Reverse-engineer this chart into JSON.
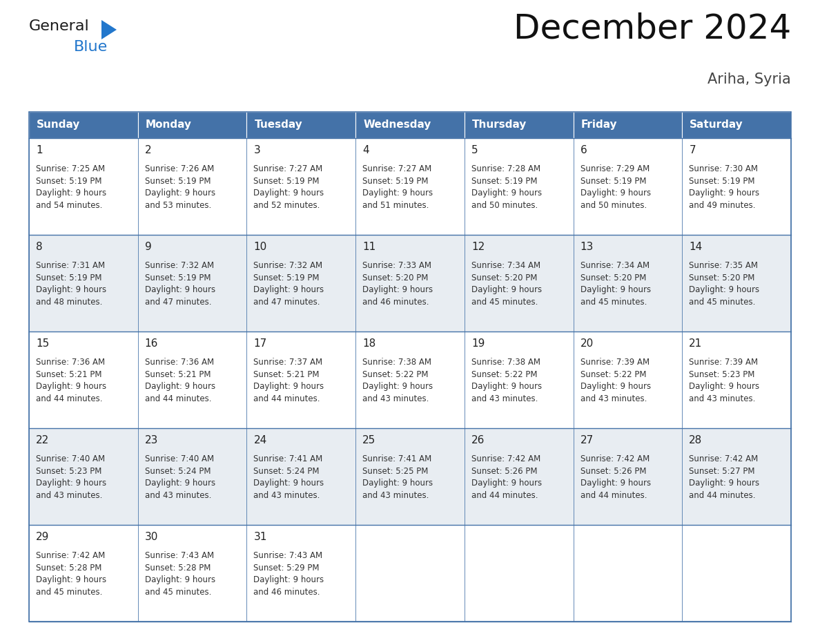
{
  "title": "December 2024",
  "subtitle": "Ariha, Syria",
  "header_color": "#4472a8",
  "header_text_color": "#ffffff",
  "cell_bg_white": "#ffffff",
  "cell_bg_gray": "#e8edf2",
  "border_color": "#4472a8",
  "text_color": "#333333",
  "day_num_color": "#222222",
  "day_names": [
    "Sunday",
    "Monday",
    "Tuesday",
    "Wednesday",
    "Thursday",
    "Friday",
    "Saturday"
  ],
  "days": [
    {
      "day": 1,
      "col": 0,
      "row": 0,
      "sunrise": "7:25 AM",
      "sunset": "5:19 PM",
      "daylight_l1": "9 hours",
      "daylight_l2": "and 54 minutes."
    },
    {
      "day": 2,
      "col": 1,
      "row": 0,
      "sunrise": "7:26 AM",
      "sunset": "5:19 PM",
      "daylight_l1": "9 hours",
      "daylight_l2": "and 53 minutes."
    },
    {
      "day": 3,
      "col": 2,
      "row": 0,
      "sunrise": "7:27 AM",
      "sunset": "5:19 PM",
      "daylight_l1": "9 hours",
      "daylight_l2": "and 52 minutes."
    },
    {
      "day": 4,
      "col": 3,
      "row": 0,
      "sunrise": "7:27 AM",
      "sunset": "5:19 PM",
      "daylight_l1": "9 hours",
      "daylight_l2": "and 51 minutes."
    },
    {
      "day": 5,
      "col": 4,
      "row": 0,
      "sunrise": "7:28 AM",
      "sunset": "5:19 PM",
      "daylight_l1": "9 hours",
      "daylight_l2": "and 50 minutes."
    },
    {
      "day": 6,
      "col": 5,
      "row": 0,
      "sunrise": "7:29 AM",
      "sunset": "5:19 PM",
      "daylight_l1": "9 hours",
      "daylight_l2": "and 50 minutes."
    },
    {
      "day": 7,
      "col": 6,
      "row": 0,
      "sunrise": "7:30 AM",
      "sunset": "5:19 PM",
      "daylight_l1": "9 hours",
      "daylight_l2": "and 49 minutes."
    },
    {
      "day": 8,
      "col": 0,
      "row": 1,
      "sunrise": "7:31 AM",
      "sunset": "5:19 PM",
      "daylight_l1": "9 hours",
      "daylight_l2": "and 48 minutes."
    },
    {
      "day": 9,
      "col": 1,
      "row": 1,
      "sunrise": "7:32 AM",
      "sunset": "5:19 PM",
      "daylight_l1": "9 hours",
      "daylight_l2": "and 47 minutes."
    },
    {
      "day": 10,
      "col": 2,
      "row": 1,
      "sunrise": "7:32 AM",
      "sunset": "5:19 PM",
      "daylight_l1": "9 hours",
      "daylight_l2": "and 47 minutes."
    },
    {
      "day": 11,
      "col": 3,
      "row": 1,
      "sunrise": "7:33 AM",
      "sunset": "5:20 PM",
      "daylight_l1": "9 hours",
      "daylight_l2": "and 46 minutes."
    },
    {
      "day": 12,
      "col": 4,
      "row": 1,
      "sunrise": "7:34 AM",
      "sunset": "5:20 PM",
      "daylight_l1": "9 hours",
      "daylight_l2": "and 45 minutes."
    },
    {
      "day": 13,
      "col": 5,
      "row": 1,
      "sunrise": "7:34 AM",
      "sunset": "5:20 PM",
      "daylight_l1": "9 hours",
      "daylight_l2": "and 45 minutes."
    },
    {
      "day": 14,
      "col": 6,
      "row": 1,
      "sunrise": "7:35 AM",
      "sunset": "5:20 PM",
      "daylight_l1": "9 hours",
      "daylight_l2": "and 45 minutes."
    },
    {
      "day": 15,
      "col": 0,
      "row": 2,
      "sunrise": "7:36 AM",
      "sunset": "5:21 PM",
      "daylight_l1": "9 hours",
      "daylight_l2": "and 44 minutes."
    },
    {
      "day": 16,
      "col": 1,
      "row": 2,
      "sunrise": "7:36 AM",
      "sunset": "5:21 PM",
      "daylight_l1": "9 hours",
      "daylight_l2": "and 44 minutes."
    },
    {
      "day": 17,
      "col": 2,
      "row": 2,
      "sunrise": "7:37 AM",
      "sunset": "5:21 PM",
      "daylight_l1": "9 hours",
      "daylight_l2": "and 44 minutes."
    },
    {
      "day": 18,
      "col": 3,
      "row": 2,
      "sunrise": "7:38 AM",
      "sunset": "5:22 PM",
      "daylight_l1": "9 hours",
      "daylight_l2": "and 43 minutes."
    },
    {
      "day": 19,
      "col": 4,
      "row": 2,
      "sunrise": "7:38 AM",
      "sunset": "5:22 PM",
      "daylight_l1": "9 hours",
      "daylight_l2": "and 43 minutes."
    },
    {
      "day": 20,
      "col": 5,
      "row": 2,
      "sunrise": "7:39 AM",
      "sunset": "5:22 PM",
      "daylight_l1": "9 hours",
      "daylight_l2": "and 43 minutes."
    },
    {
      "day": 21,
      "col": 6,
      "row": 2,
      "sunrise": "7:39 AM",
      "sunset": "5:23 PM",
      "daylight_l1": "9 hours",
      "daylight_l2": "and 43 minutes."
    },
    {
      "day": 22,
      "col": 0,
      "row": 3,
      "sunrise": "7:40 AM",
      "sunset": "5:23 PM",
      "daylight_l1": "9 hours",
      "daylight_l2": "and 43 minutes."
    },
    {
      "day": 23,
      "col": 1,
      "row": 3,
      "sunrise": "7:40 AM",
      "sunset": "5:24 PM",
      "daylight_l1": "9 hours",
      "daylight_l2": "and 43 minutes."
    },
    {
      "day": 24,
      "col": 2,
      "row": 3,
      "sunrise": "7:41 AM",
      "sunset": "5:24 PM",
      "daylight_l1": "9 hours",
      "daylight_l2": "and 43 minutes."
    },
    {
      "day": 25,
      "col": 3,
      "row": 3,
      "sunrise": "7:41 AM",
      "sunset": "5:25 PM",
      "daylight_l1": "9 hours",
      "daylight_l2": "and 43 minutes."
    },
    {
      "day": 26,
      "col": 4,
      "row": 3,
      "sunrise": "7:42 AM",
      "sunset": "5:26 PM",
      "daylight_l1": "9 hours",
      "daylight_l2": "and 44 minutes."
    },
    {
      "day": 27,
      "col": 5,
      "row": 3,
      "sunrise": "7:42 AM",
      "sunset": "5:26 PM",
      "daylight_l1": "9 hours",
      "daylight_l2": "and 44 minutes."
    },
    {
      "day": 28,
      "col": 6,
      "row": 3,
      "sunrise": "7:42 AM",
      "sunset": "5:27 PM",
      "daylight_l1": "9 hours",
      "daylight_l2": "and 44 minutes."
    },
    {
      "day": 29,
      "col": 0,
      "row": 4,
      "sunrise": "7:42 AM",
      "sunset": "5:28 PM",
      "daylight_l1": "9 hours",
      "daylight_l2": "and 45 minutes."
    },
    {
      "day": 30,
      "col": 1,
      "row": 4,
      "sunrise": "7:43 AM",
      "sunset": "5:28 PM",
      "daylight_l1": "9 hours",
      "daylight_l2": "and 45 minutes."
    },
    {
      "day": 31,
      "col": 2,
      "row": 4,
      "sunrise": "7:43 AM",
      "sunset": "5:29 PM",
      "daylight_l1": "9 hours",
      "daylight_l2": "and 46 minutes."
    }
  ],
  "num_rows": 5,
  "logo_text_general": "General",
  "logo_text_blue": "Blue",
  "logo_color_general": "#1a1a1a",
  "logo_color_blue": "#2277cc",
  "logo_triangle_color": "#2277cc",
  "title_fontsize": 36,
  "subtitle_fontsize": 15,
  "header_fontsize": 11,
  "day_num_fontsize": 11,
  "cell_text_fontsize": 8.5
}
